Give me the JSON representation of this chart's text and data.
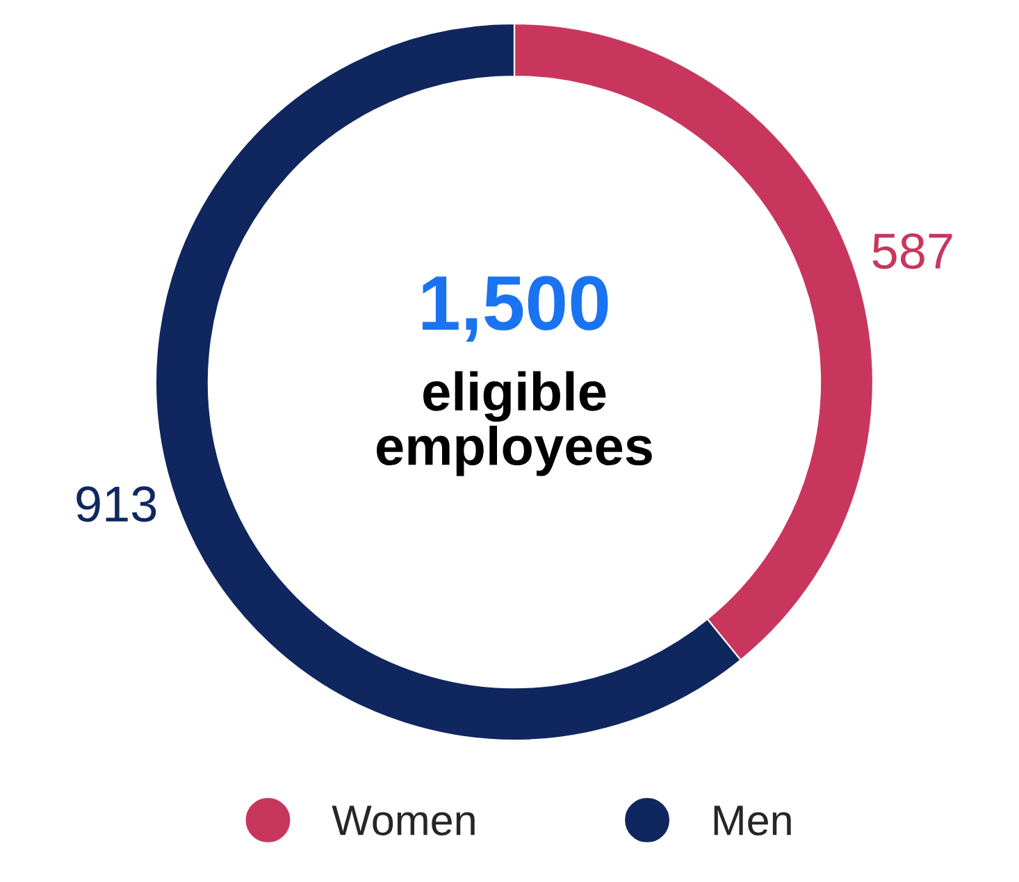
{
  "chart_data": {
    "type": "donut",
    "categories": [
      "Women",
      "Men"
    ],
    "values": [
      587,
      913
    ],
    "colors": [
      "#c8365e",
      "#10265e"
    ],
    "data_labels": true,
    "legend": "bottom",
    "annotations": [
      "1,500",
      "eligible\nemployees"
    ]
  }
}
